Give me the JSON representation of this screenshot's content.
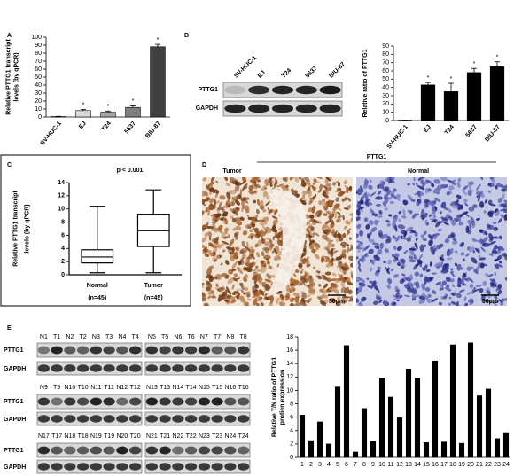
{
  "panel_labels": [
    "A",
    "B",
    "C",
    "D",
    "E"
  ],
  "blot_b": {
    "lanes": [
      "SV-HUC-1",
      "EJ",
      "T24",
      "5637",
      "BIU-87"
    ],
    "rows": [
      "PTTG1",
      "GAPDH"
    ]
  },
  "ihc": {
    "title": "PTTG1",
    "columns": [
      "Tumor",
      "Normal"
    ],
    "scale_bar": "50μm"
  },
  "blot_e": {
    "rows": [
      "PTTG1",
      "GAPDH"
    ],
    "groups": [
      [
        "N1",
        "T1",
        "N2",
        "T2",
        "N3",
        "T3",
        "N4",
        "T4"
      ],
      [
        "N5",
        "T5",
        "N6",
        "T6",
        "N7",
        "T7",
        "N8",
        "T8"
      ],
      [
        "N9",
        "T9",
        "N10",
        "T10",
        "N11",
        "T11",
        "N12",
        "T12"
      ],
      [
        "N13",
        "T13",
        "N14",
        "T14",
        "N15",
        "T15",
        "N16",
        "T16"
      ],
      [
        "N17",
        "T17",
        "N18",
        "T18",
        "N19",
        "T19",
        "N20",
        "T20"
      ],
      [
        "N21",
        "T21",
        "N22",
        "T22",
        "N23",
        "T23",
        "N24",
        "T24"
      ]
    ]
  },
  "chart_data": [
    {
      "type": "bar",
      "ylabel": [
        "Relative PTTG1 transcript",
        "levels (by qPCR)"
      ],
      "categories": [
        "SV-HUC-1",
        "EJ",
        "T24",
        "5637",
        "BIU-87"
      ],
      "values": [
        0.5,
        8,
        6,
        12,
        88
      ],
      "errors": [
        0.3,
        1.5,
        1.5,
        2,
        3
      ],
      "significance": [
        null,
        "*",
        "*",
        "*",
        "*"
      ],
      "colors": [
        "#ffffff",
        "#d9d9d9",
        "#a6a6a6",
        "#7f7f7f",
        "#404040"
      ],
      "ylim": [
        0,
        100
      ],
      "yticks": [
        0,
        10,
        20,
        30,
        40,
        50,
        60,
        70,
        80,
        90,
        100
      ]
    },
    {
      "type": "bar",
      "ylabel": [
        "Relative ratio of PTTG1"
      ],
      "categories": [
        "SV-HUC-1",
        "EJ",
        "T24",
        "5637",
        "BIU-87"
      ],
      "values": [
        0.5,
        43,
        35,
        58,
        65
      ],
      "errors": [
        0,
        3,
        10,
        5,
        6
      ],
      "significance": [
        null,
        "*",
        "*",
        "*",
        "*"
      ],
      "color": "#000000",
      "ylim": [
        0,
        90
      ],
      "yticks": [
        0,
        10,
        20,
        30,
        40,
        50,
        60,
        70,
        80,
        90
      ]
    },
    {
      "type": "box",
      "title": "p < 0.001",
      "ylabel": [
        "Relative PTTG1 transcript",
        "levels (by qPCR)"
      ],
      "categories": [
        "Normal",
        "Tumor"
      ],
      "category_notes": [
        "(n=45)",
        "(n=45)"
      ],
      "stats": [
        {
          "min": 0.3,
          "q1": 1.8,
          "median": 2.7,
          "q3": 3.8,
          "max": 10.4
        },
        {
          "min": 0.3,
          "q1": 4.3,
          "median": 6.7,
          "q3": 9.2,
          "max": 12.9
        }
      ],
      "ylim": [
        0,
        14
      ],
      "yticks": [
        0,
        2,
        4,
        6,
        8,
        10,
        12,
        14
      ]
    },
    {
      "type": "bar",
      "ylabel": [
        "Relative T/N ratio of PTTG1",
        "protien expression"
      ],
      "categories": [
        1,
        2,
        3,
        4,
        5,
        6,
        7,
        8,
        9,
        10,
        11,
        12,
        13,
        14,
        15,
        16,
        17,
        18,
        19,
        20,
        21,
        22,
        23,
        24
      ],
      "values": [
        6.3,
        2.5,
        5.3,
        2.0,
        10.5,
        16.7,
        0.8,
        7.3,
        2.4,
        11.8,
        9.0,
        5.9,
        13.2,
        11.8,
        2.2,
        14.4,
        2.3,
        16.8,
        2.1,
        17.1,
        9.2,
        10.2,
        2.8,
        3.7
      ],
      "color": "#000000",
      "ylim": [
        0,
        18
      ],
      "yticks": [
        0,
        2,
        4,
        6,
        8,
        10,
        12,
        14,
        16,
        18
      ]
    }
  ]
}
